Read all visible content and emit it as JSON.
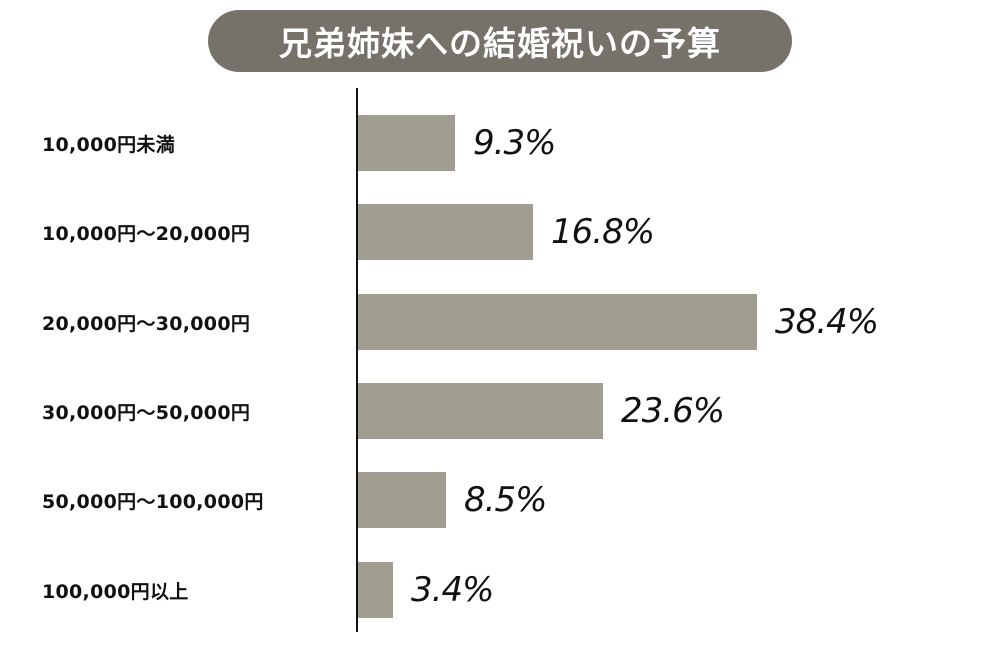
{
  "title": "兄弟姉妹への結婚祝いの予算",
  "colors": {
    "title_bg": "#767169",
    "bar": "#a09e91",
    "axis": "#111111"
  },
  "chart_data": {
    "type": "bar",
    "orientation": "horizontal",
    "title": "兄弟姉妹への結婚祝いの予算",
    "xlabel": "",
    "ylabel": "",
    "categories": [
      "10,000円未満",
      "10,000円〜20,000円",
      "20,000円〜30,000円",
      "30,000円〜50,000円",
      "50,000円〜100,000円",
      "100,000円以上"
    ],
    "values": [
      9.3,
      16.8,
      38.4,
      23.6,
      8.5,
      3.4
    ],
    "value_labels": [
      "9.3%",
      "16.8%",
      "38.4%",
      "23.6%",
      "8.5%",
      "3.4%"
    ],
    "unit": "%",
    "grid": false,
    "legend": null
  },
  "rows": [
    {
      "label": "10,000円未満",
      "value": "9.3%"
    },
    {
      "label": "10,000円〜20,000円",
      "value": "16.8%"
    },
    {
      "label": "20,000円〜30,000円",
      "value": "38.4%"
    },
    {
      "label": "30,000円〜50,000円",
      "value": "23.6%"
    },
    {
      "label": "50,000円〜100,000円",
      "value": "8.5%"
    },
    {
      "label": "100,000円以上",
      "value": "3.4%"
    }
  ]
}
